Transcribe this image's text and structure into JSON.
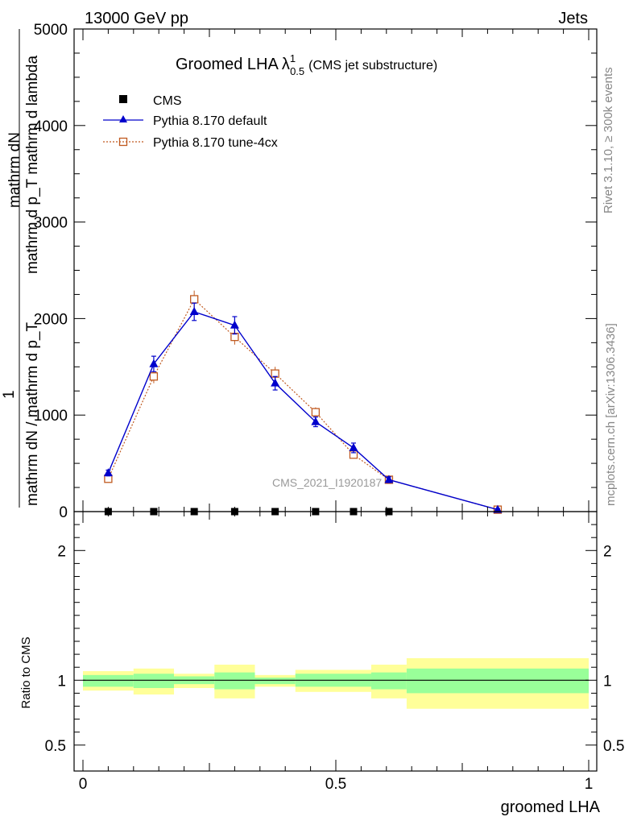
{
  "header": {
    "energy": "13000 GeV pp",
    "process": "Jets"
  },
  "side_labels": {
    "rivet": "Rivet 3.1.10, ≥ 300k events",
    "mcplots": "mcplots.cern.ch [arXiv:1306.3436]"
  },
  "watermark": "CMS_2021_I1920187",
  "chart_data": [
    {
      "type": "line",
      "title_main": "Groomed LHA",
      "title_lambda": "λ",
      "title_sup": "1",
      "title_sub": "0.5",
      "title_suffix": "(CMS jet substructure)",
      "ylabel_numerator": "mathrm dN",
      "ylabel_numerator_cont": "mathrm d p_T mathrm d lambda",
      "ylabel_one": "1",
      "ylabel_denominator": "mathrm dN / mathrm d p_T",
      "ylim": [
        0,
        5000
      ],
      "xlim": [
        0,
        1
      ],
      "yticks": [
        0,
        1000,
        2000,
        3000,
        4000,
        5000
      ],
      "ytick_labels": [
        "0",
        "1000",
        "2000",
        "3000",
        "4000",
        "5000"
      ],
      "legend_position": "top-left",
      "series": [
        {
          "name": "CMS",
          "color": "#000000",
          "marker": "square",
          "x": [
            0.05,
            0.14,
            0.22,
            0.3,
            0.38,
            0.46,
            0.535,
            0.605
          ],
          "values": [
            0,
            0,
            0,
            0,
            0,
            0,
            0,
            0
          ]
        },
        {
          "name": "Pythia 8.170 default",
          "color": "#0000cc",
          "marker": "triangle",
          "x": [
            0.05,
            0.14,
            0.22,
            0.3,
            0.38,
            0.46,
            0.535,
            0.605,
            0.82
          ],
          "values": [
            400,
            1530,
            2070,
            1930,
            1330,
            930,
            660,
            330,
            20
          ],
          "errors": [
            30,
            80,
            90,
            90,
            70,
            50,
            50,
            30,
            10
          ]
        },
        {
          "name": "Pythia 8.170 tune-4cx",
          "color": "#c05a20",
          "marker": "open-square",
          "x": [
            0.05,
            0.14,
            0.22,
            0.3,
            0.38,
            0.46,
            0.535,
            0.605,
            0.82
          ],
          "values": [
            340,
            1400,
            2200,
            1810,
            1430,
            1030,
            590,
            330,
            20
          ],
          "errors": [
            30,
            70,
            90,
            80,
            70,
            50,
            40,
            30,
            10
          ]
        }
      ]
    },
    {
      "type": "area",
      "ylabel": "Ratio to CMS",
      "xlabel": "groomed LHA",
      "ylim": [
        0.3,
        2.3
      ],
      "xlim": [
        0,
        1
      ],
      "yticks": [
        0.5,
        1,
        2
      ],
      "ytick_labels": [
        "0.5",
        "1",
        "2"
      ],
      "xticks": [
        0,
        0.5,
        1
      ],
      "xtick_labels": [
        "0",
        "0.5",
        "1"
      ],
      "reference": 1,
      "band_colors": {
        "inner": "#99ff99",
        "outer": "#ffff99"
      },
      "bins": [
        {
          "x0": 0.0,
          "x1": 0.1,
          "inner": [
            0.95,
            1.04
          ],
          "outer": [
            0.92,
            1.07
          ]
        },
        {
          "x0": 0.1,
          "x1": 0.18,
          "inner": [
            0.94,
            1.05
          ],
          "outer": [
            0.89,
            1.09
          ]
        },
        {
          "x0": 0.18,
          "x1": 0.26,
          "inner": [
            0.97,
            1.03
          ],
          "outer": [
            0.94,
            1.05
          ]
        },
        {
          "x0": 0.26,
          "x1": 0.34,
          "inner": [
            0.93,
            1.06
          ],
          "outer": [
            0.86,
            1.12
          ]
        },
        {
          "x0": 0.34,
          "x1": 0.42,
          "inner": [
            0.97,
            1.02
          ],
          "outer": [
            0.95,
            1.04
          ]
        },
        {
          "x0": 0.42,
          "x1": 0.57,
          "inner": [
            0.95,
            1.05
          ],
          "outer": [
            0.91,
            1.08
          ]
        },
        {
          "x0": 0.57,
          "x1": 0.64,
          "inner": [
            0.93,
            1.06
          ],
          "outer": [
            0.86,
            1.12
          ]
        },
        {
          "x0": 0.64,
          "x1": 1.0,
          "inner": [
            0.9,
            1.09
          ],
          "outer": [
            0.78,
            1.17
          ]
        }
      ]
    }
  ]
}
